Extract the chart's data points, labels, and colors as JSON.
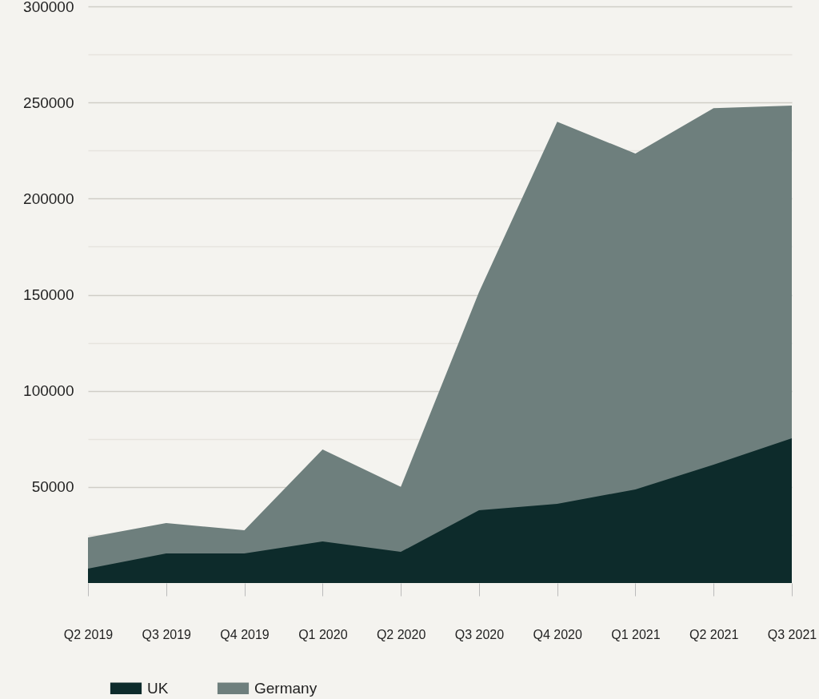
{
  "chart_data": {
    "type": "area",
    "categories": [
      "Q2 2019",
      "Q3 2019",
      "Q4 2019",
      "Q1 2020",
      "Q2 2020",
      "Q3 2020",
      "Q4 2020",
      "Q1 2021",
      "Q2 2021",
      "Q3 2021"
    ],
    "series": [
      {
        "name": "UK",
        "color": "#0d2b2b",
        "values": [
          7500,
          15400,
          15400,
          21600,
          16200,
          37900,
          41200,
          48700,
          61600,
          75300
        ]
      },
      {
        "name": "Germany",
        "color": "#6e7f7d",
        "values": [
          23700,
          31200,
          27500,
          69500,
          50000,
          151400,
          240000,
          223400,
          247100,
          248400
        ]
      }
    ],
    "ylim": [
      0,
      300000
    ],
    "yticks": [
      {
        "value": 25000,
        "label": null
      },
      50000,
      {
        "value": 75000,
        "label": null
      },
      100000,
      {
        "value": 125000,
        "label": null
      },
      150000,
      {
        "value": 175000,
        "label": null
      },
      200000,
      {
        "value": 225000,
        "label": null
      },
      250000,
      {
        "value": 275000,
        "label": null
      },
      300000
    ],
    "grid": "y",
    "legend": "bottom left"
  }
}
